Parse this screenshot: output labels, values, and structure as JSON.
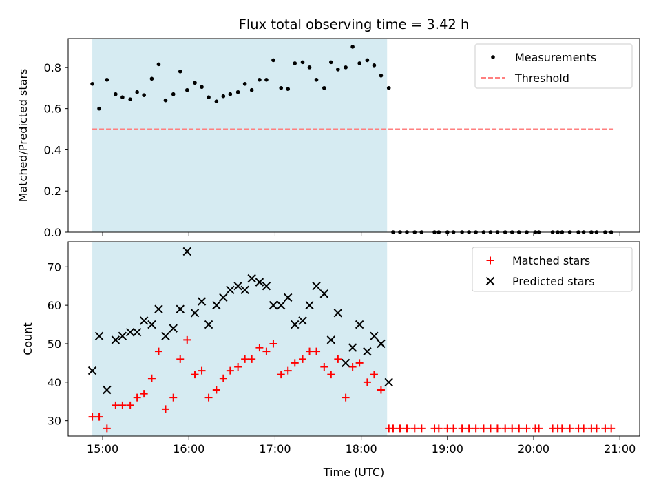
{
  "chart_data": {
    "title": "Flux total observing time = 3.42 h",
    "xlabel": "Time (UTC)",
    "x_ticks": [
      "15:00",
      "16:00",
      "17:00",
      "18:00",
      "19:00",
      "20:00",
      "21:00"
    ],
    "x_range_hours": [
      14.6,
      21.23
    ],
    "highlight_span_hours": [
      14.88,
      18.3
    ],
    "highlight_color": "#add8e6",
    "panels": [
      {
        "type": "scatter",
        "ylabel": "Matched/Predicted stars",
        "ylim": [
          0,
          0.94
        ],
        "yticks": [
          "0.0",
          "0.2",
          "0.4",
          "0.6",
          "0.8"
        ],
        "legend_position": "top-right",
        "series": [
          {
            "name": "Measurements",
            "marker": "dot",
            "color": "#000000",
            "points": [
              [
                14.88,
                0.72
              ],
              [
                14.96,
                0.6
              ],
              [
                15.05,
                0.74
              ],
              [
                15.15,
                0.67
              ],
              [
                15.23,
                0.655
              ],
              [
                15.32,
                0.645
              ],
              [
                15.4,
                0.68
              ],
              [
                15.48,
                0.665
              ],
              [
                15.57,
                0.745
              ],
              [
                15.65,
                0.815
              ],
              [
                15.73,
                0.64
              ],
              [
                15.82,
                0.67
              ],
              [
                15.9,
                0.78
              ],
              [
                15.98,
                0.69
              ],
              [
                16.07,
                0.725
              ],
              [
                16.15,
                0.705
              ],
              [
                16.23,
                0.655
              ],
              [
                16.32,
                0.635
              ],
              [
                16.4,
                0.66
              ],
              [
                16.48,
                0.67
              ],
              [
                16.57,
                0.68
              ],
              [
                16.65,
                0.72
              ],
              [
                16.73,
                0.69
              ],
              [
                16.82,
                0.74
              ],
              [
                16.9,
                0.74
              ],
              [
                16.98,
                0.835
              ],
              [
                17.07,
                0.7
              ],
              [
                17.15,
                0.695
              ],
              [
                17.23,
                0.82
              ],
              [
                17.32,
                0.825
              ],
              [
                17.4,
                0.8
              ],
              [
                17.48,
                0.74
              ],
              [
                17.57,
                0.7
              ],
              [
                17.65,
                0.825
              ],
              [
                17.73,
                0.79
              ],
              [
                17.82,
                0.8
              ],
              [
                17.9,
                0.9
              ],
              [
                17.98,
                0.82
              ],
              [
                18.07,
                0.835
              ],
              [
                18.15,
                0.81
              ],
              [
                18.23,
                0.76
              ],
              [
                18.32,
                0.7
              ],
              [
                18.37,
                0
              ],
              [
                18.45,
                0
              ],
              [
                18.53,
                0
              ],
              [
                18.62,
                0
              ],
              [
                18.7,
                0
              ],
              [
                18.85,
                0
              ],
              [
                18.9,
                0
              ],
              [
                19.0,
                0
              ],
              [
                19.07,
                0
              ],
              [
                19.17,
                0
              ],
              [
                19.25,
                0
              ],
              [
                19.33,
                0
              ],
              [
                19.42,
                0
              ],
              [
                19.5,
                0
              ],
              [
                19.58,
                0
              ],
              [
                19.67,
                0
              ],
              [
                19.75,
                0
              ],
              [
                19.83,
                0
              ],
              [
                19.92,
                0
              ],
              [
                20.02,
                0
              ],
              [
                20.06,
                0
              ],
              [
                20.22,
                0
              ],
              [
                20.28,
                0
              ],
              [
                20.33,
                0
              ],
              [
                20.42,
                0
              ],
              [
                20.52,
                0
              ],
              [
                20.58,
                0
              ],
              [
                20.67,
                0
              ],
              [
                20.73,
                0
              ],
              [
                20.83,
                0
              ],
              [
                20.9,
                0
              ]
            ]
          },
          {
            "name": "Threshold",
            "style": "dashed",
            "color": "#ff7f7f",
            "x": [
              14.88,
              20.93
            ],
            "y": [
              0.5,
              0.5
            ]
          }
        ]
      },
      {
        "type": "scatter",
        "ylabel": "Count",
        "ylim": [
          26,
          76.5
        ],
        "yticks": [
          "30",
          "40",
          "50",
          "60",
          "70"
        ],
        "legend_position": "top-right",
        "series": [
          {
            "name": "Matched stars",
            "marker": "plus",
            "color": "#ff0000",
            "points": [
              [
                14.88,
                31
              ],
              [
                14.96,
                31
              ],
              [
                15.05,
                28
              ],
              [
                15.15,
                34
              ],
              [
                15.23,
                34
              ],
              [
                15.32,
                34
              ],
              [
                15.4,
                36
              ],
              [
                15.48,
                37
              ],
              [
                15.57,
                41
              ],
              [
                15.65,
                48
              ],
              [
                15.73,
                33
              ],
              [
                15.82,
                36
              ],
              [
                15.9,
                46
              ],
              [
                15.98,
                51
              ],
              [
                16.07,
                42
              ],
              [
                16.15,
                43
              ],
              [
                16.23,
                36
              ],
              [
                16.32,
                38
              ],
              [
                16.4,
                41
              ],
              [
                16.48,
                43
              ],
              [
                16.57,
                44
              ],
              [
                16.65,
                46
              ],
              [
                16.73,
                46
              ],
              [
                16.82,
                49
              ],
              [
                16.9,
                48
              ],
              [
                16.98,
                50
              ],
              [
                17.07,
                42
              ],
              [
                17.15,
                43
              ],
              [
                17.23,
                45
              ],
              [
                17.32,
                46
              ],
              [
                17.4,
                48
              ],
              [
                17.48,
                48
              ],
              [
                17.57,
                44
              ],
              [
                17.65,
                42
              ],
              [
                17.73,
                46
              ],
              [
                17.82,
                36
              ],
              [
                17.9,
                44
              ],
              [
                17.98,
                45
              ],
              [
                18.07,
                40
              ],
              [
                18.15,
                42
              ],
              [
                18.23,
                38
              ],
              [
                18.32,
                28
              ],
              [
                18.37,
                28
              ],
              [
                18.45,
                28
              ],
              [
                18.53,
                28
              ],
              [
                18.62,
                28
              ],
              [
                18.7,
                28
              ],
              [
                18.85,
                28
              ],
              [
                18.9,
                28
              ],
              [
                19.0,
                28
              ],
              [
                19.07,
                28
              ],
              [
                19.17,
                28
              ],
              [
                19.25,
                28
              ],
              [
                19.33,
                28
              ],
              [
                19.42,
                28
              ],
              [
                19.5,
                28
              ],
              [
                19.58,
                28
              ],
              [
                19.67,
                28
              ],
              [
                19.75,
                28
              ],
              [
                19.83,
                28
              ],
              [
                19.92,
                28
              ],
              [
                20.02,
                28
              ],
              [
                20.06,
                28
              ],
              [
                20.22,
                28
              ],
              [
                20.28,
                28
              ],
              [
                20.33,
                28
              ],
              [
                20.42,
                28
              ],
              [
                20.52,
                28
              ],
              [
                20.58,
                28
              ],
              [
                20.67,
                28
              ],
              [
                20.73,
                28
              ],
              [
                20.83,
                28
              ],
              [
                20.9,
                28
              ]
            ]
          },
          {
            "name": "Predicted stars",
            "marker": "x",
            "color": "#000000",
            "points": [
              [
                14.88,
                43
              ],
              [
                14.96,
                52
              ],
              [
                15.05,
                38
              ],
              [
                15.15,
                51
              ],
              [
                15.23,
                52
              ],
              [
                15.32,
                53
              ],
              [
                15.4,
                53
              ],
              [
                15.48,
                56
              ],
              [
                15.57,
                55
              ],
              [
                15.65,
                59
              ],
              [
                15.73,
                52
              ],
              [
                15.82,
                54
              ],
              [
                15.9,
                59
              ],
              [
                15.98,
                74
              ],
              [
                16.07,
                58
              ],
              [
                16.15,
                61
              ],
              [
                16.23,
                55
              ],
              [
                16.32,
                60
              ],
              [
                16.4,
                62
              ],
              [
                16.48,
                64
              ],
              [
                16.57,
                65
              ],
              [
                16.65,
                64
              ],
              [
                16.73,
                67
              ],
              [
                16.82,
                66
              ],
              [
                16.9,
                65
              ],
              [
                16.98,
                60
              ],
              [
                17.07,
                60
              ],
              [
                17.15,
                62
              ],
              [
                17.23,
                55
              ],
              [
                17.32,
                56
              ],
              [
                17.4,
                60
              ],
              [
                17.48,
                65
              ],
              [
                17.57,
                63
              ],
              [
                17.65,
                51
              ],
              [
                17.73,
                58
              ],
              [
                17.82,
                45
              ],
              [
                17.9,
                49
              ],
              [
                17.98,
                55
              ],
              [
                18.07,
                48
              ],
              [
                18.15,
                52
              ],
              [
                18.23,
                50
              ],
              [
                18.32,
                40
              ]
            ]
          }
        ]
      }
    ]
  }
}
